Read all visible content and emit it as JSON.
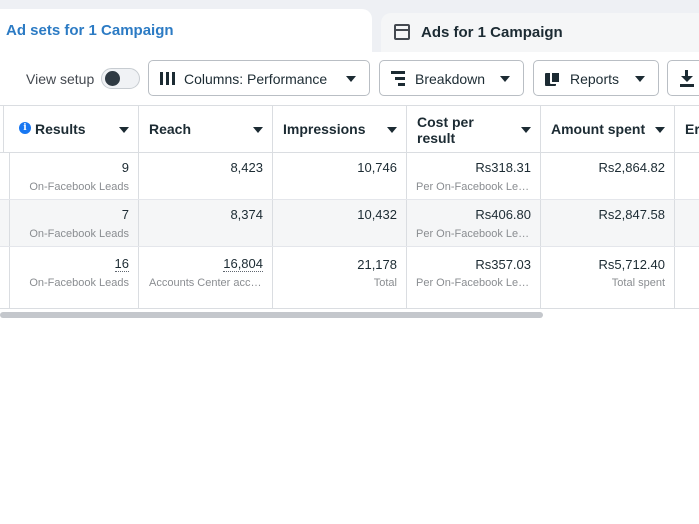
{
  "tabs": {
    "active_label": "Ad sets for 1 Campaign",
    "inactive_label": "Ads for 1 Campaign"
  },
  "toolbar": {
    "view_setup_label": "View setup",
    "view_setup_toggle_on": false,
    "columns_label": "Columns: Performance",
    "breakdown_label": "Breakdown",
    "reports_label": "Reports"
  },
  "table": {
    "headers": {
      "results": "Results",
      "reach": "Reach",
      "impressions": "Impressions",
      "cost_per_result_line1": "Cost per",
      "cost_per_result_line2": "result",
      "amount_spent": "Amount spent",
      "next_col_partial": "Er"
    },
    "rows": [
      {
        "results": "9",
        "results_sub": "On-Facebook Leads",
        "reach": "8,423",
        "impressions": "10,746",
        "cost": "Rs318.31",
        "cost_sub": "Per On-Facebook Leads",
        "spent": "Rs2,864.82"
      },
      {
        "results": "7",
        "results_sub": "On-Facebook Leads",
        "reach": "8,374",
        "impressions": "10,432",
        "cost": "Rs406.80",
        "cost_sub": "Per On-Facebook Leads",
        "spent": "Rs2,847.58"
      }
    ],
    "total": {
      "results": "16",
      "results_sub": "On-Facebook Leads",
      "reach": "16,804",
      "reach_sub": "Accounts Center accounts",
      "impressions": "21,178",
      "impressions_sub": "Total",
      "cost": "Rs357.03",
      "cost_sub": "Per On-Facebook Leads",
      "spent": "Rs5,712.40",
      "spent_sub": "Total spent"
    }
  },
  "colors": {
    "accent": "#2c7bc4",
    "info": "#1877f2",
    "row_alt": "#f5f6f7"
  }
}
